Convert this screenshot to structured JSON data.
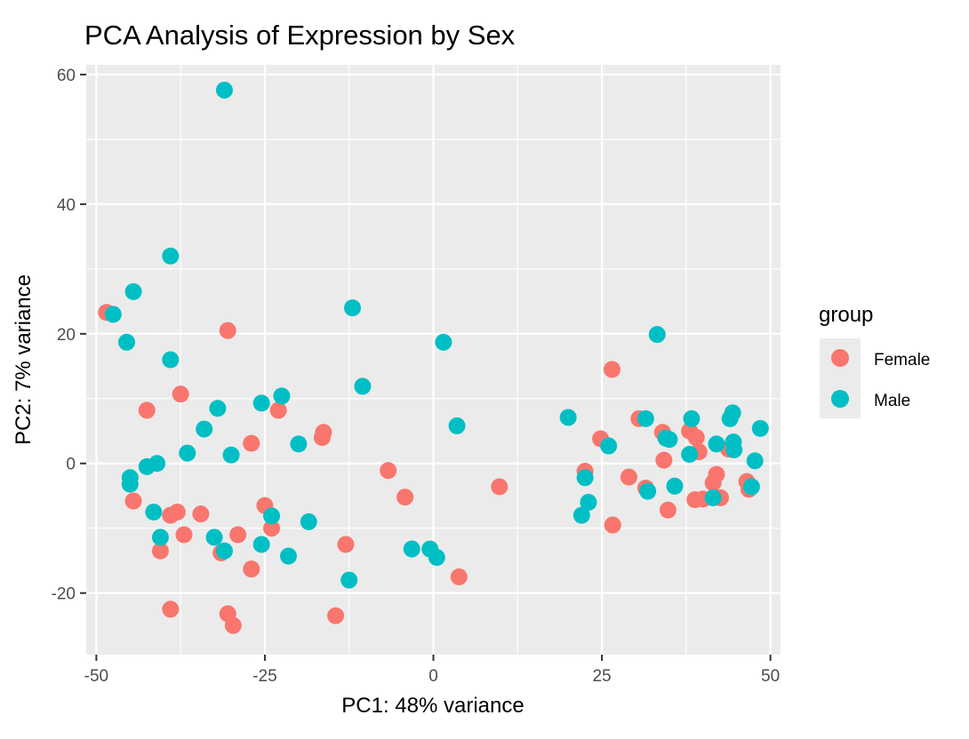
{
  "chart_data": {
    "type": "scatter",
    "title": "PCA Analysis of Expression by Sex",
    "xlabel": "PC1: 48% variance",
    "ylabel": "PC2: 7% variance",
    "xlim": [
      -51.5,
      51.5
    ],
    "ylim": [
      -29.5,
      61.5
    ],
    "x_ticks": [
      -50,
      -25,
      0,
      25,
      50
    ],
    "x_tick_labels": [
      "-50",
      "-25",
      "0",
      "25",
      "50"
    ],
    "y_ticks": [
      -20,
      0,
      20,
      40,
      60
    ],
    "y_tick_labels": [
      "-20",
      "0",
      "20",
      "40",
      "60"
    ],
    "grid": true,
    "legend": {
      "title": "group",
      "position": "right"
    },
    "series": [
      {
        "name": "Female",
        "color": "#F8766D",
        "points": [
          [
            -48.5,
            23.3
          ],
          [
            -42.5,
            8.2
          ],
          [
            -37.5,
            10.7
          ],
          [
            -44.5,
            -5.8
          ],
          [
            -40.5,
            -13.5
          ],
          [
            -39.0,
            -8.0
          ],
          [
            -38.0,
            -7.5
          ],
          [
            -37.0,
            -11.0
          ],
          [
            -34.5,
            -7.8
          ],
          [
            -39.0,
            -22.5
          ],
          [
            -31.5,
            -13.8
          ],
          [
            -29.0,
            -11.0
          ],
          [
            -30.5,
            -23.2
          ],
          [
            -29.7,
            -25.0
          ],
          [
            -27.0,
            -16.3
          ],
          [
            -30.5,
            20.5
          ],
          [
            -27.0,
            3.1
          ],
          [
            -25.0,
            -6.5
          ],
          [
            -24.0,
            -10.0
          ],
          [
            -23.0,
            8.2
          ],
          [
            -16.5,
            4.0
          ],
          [
            -16.3,
            4.8
          ],
          [
            -13.0,
            -12.5
          ],
          [
            -14.5,
            -23.5
          ],
          [
            -6.7,
            -1.1
          ],
          [
            -4.2,
            -5.2
          ],
          [
            3.8,
            -17.5
          ],
          [
            9.8,
            -3.6
          ],
          [
            22.5,
            -1.2
          ],
          [
            24.8,
            3.8
          ],
          [
            26.5,
            14.5
          ],
          [
            26.6,
            -9.5
          ],
          [
            29.0,
            -2.1
          ],
          [
            30.5,
            6.9
          ],
          [
            31.5,
            -3.8
          ],
          [
            34.0,
            4.8
          ],
          [
            34.2,
            0.5
          ],
          [
            34.8,
            -7.2
          ],
          [
            38.0,
            5.0
          ],
          [
            38.8,
            -5.6
          ],
          [
            39.0,
            4.0
          ],
          [
            39.4,
            1.8
          ],
          [
            40.0,
            -5.5
          ],
          [
            41.5,
            -3.0
          ],
          [
            42.0,
            -1.7
          ],
          [
            42.6,
            -5.3
          ],
          [
            43.8,
            2.2
          ],
          [
            46.5,
            -2.8
          ],
          [
            46.8,
            -4.0
          ]
        ]
      },
      {
        "name": "Male",
        "color": "#00BFC4",
        "points": [
          [
            -47.5,
            23.0
          ],
          [
            -45.5,
            18.7
          ],
          [
            -44.5,
            26.5
          ],
          [
            -39.0,
            32.0
          ],
          [
            -39.0,
            16.0
          ],
          [
            -31.0,
            57.6
          ],
          [
            -45.0,
            -2.2
          ],
          [
            -45.0,
            -3.2
          ],
          [
            -42.5,
            -0.5
          ],
          [
            -41.0,
            0.0
          ],
          [
            -41.5,
            -7.5
          ],
          [
            -40.5,
            -11.4
          ],
          [
            -36.5,
            1.6
          ],
          [
            -34.0,
            5.3
          ],
          [
            -32.5,
            -11.4
          ],
          [
            -32.0,
            8.5
          ],
          [
            -31.0,
            -13.5
          ],
          [
            -30.0,
            1.3
          ],
          [
            -25.5,
            -12.5
          ],
          [
            -25.5,
            9.3
          ],
          [
            -24.0,
            -8.1
          ],
          [
            -22.5,
            10.4
          ],
          [
            -21.5,
            -14.3
          ],
          [
            -20.0,
            3.0
          ],
          [
            -18.5,
            -9.0
          ],
          [
            -12.5,
            -18.0
          ],
          [
            -12.0,
            24.0
          ],
          [
            -10.5,
            11.9
          ],
          [
            -3.2,
            -13.2
          ],
          [
            -0.5,
            -13.2
          ],
          [
            0.5,
            -14.5
          ],
          [
            1.5,
            18.7
          ],
          [
            3.5,
            5.8
          ],
          [
            20.0,
            7.1
          ],
          [
            22.0,
            -8.0
          ],
          [
            22.5,
            -2.2
          ],
          [
            23.0,
            -6.0
          ],
          [
            26.0,
            2.7
          ],
          [
            31.5,
            6.9
          ],
          [
            31.8,
            -4.3
          ],
          [
            33.2,
            19.9
          ],
          [
            34.5,
            3.9
          ],
          [
            35.0,
            3.7
          ],
          [
            35.8,
            -3.5
          ],
          [
            38.0,
            1.4
          ],
          [
            38.3,
            6.9
          ],
          [
            41.5,
            -5.3
          ],
          [
            42.0,
            3.0
          ],
          [
            44.0,
            6.9
          ],
          [
            44.4,
            7.8
          ],
          [
            44.5,
            3.3
          ],
          [
            44.6,
            2.1
          ],
          [
            47.2,
            -3.6
          ],
          [
            47.7,
            0.4
          ],
          [
            48.5,
            5.4
          ]
        ]
      }
    ]
  }
}
